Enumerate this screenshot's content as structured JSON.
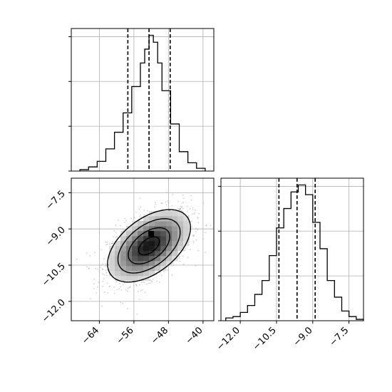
{
  "chart_data": {
    "type": "corner",
    "colors": {
      "line": "#000000",
      "grid": "#b0b0b0",
      "scatter": "#999999",
      "background": "#ffffff"
    },
    "grid": true,
    "params": [
      {
        "ticks": [
          -64,
          -56,
          -48,
          -40
        ],
        "tick_labels": [
          "−64",
          "−56",
          "−48",
          "−40"
        ],
        "range": [
          -70.5,
          -37.5
        ]
      },
      {
        "ticks": [
          -12.0,
          -10.5,
          -9.0,
          -7.5
        ],
        "tick_labels": [
          "−12.0",
          "−10.5",
          "−9.0",
          "−7.5"
        ],
        "range": [
          -12.8,
          -6.9
        ]
      }
    ],
    "panels": [
      {
        "kind": "histogram",
        "param": 0,
        "bin_edges": [
          -68.5,
          -66.5,
          -64.5,
          -62.5,
          -60.5,
          -58.5,
          -56.5,
          -54.5,
          -53.5,
          -52.5,
          -51.5,
          -50.5,
          -49.5,
          -47.5,
          -45.5,
          -43.5,
          -41.5,
          -39.5
        ],
        "counts": [
          0.01,
          0.03,
          0.07,
          0.16,
          0.28,
          0.42,
          0.61,
          0.78,
          0.88,
          0.98,
          0.93,
          0.78,
          0.58,
          0.34,
          0.14,
          0.06,
          0.02
        ],
        "quantiles": [
          -57.4,
          -52.5,
          -47.6
        ]
      },
      {
        "kind": "histogram",
        "param": 1,
        "bin_edges": [
          -12.6,
          -12.3,
          -12.0,
          -11.7,
          -11.4,
          -11.1,
          -10.8,
          -10.5,
          -10.2,
          -9.9,
          -9.6,
          -9.3,
          -9.0,
          -8.7,
          -8.4,
          -8.1,
          -7.8,
          -7.5,
          -7.2,
          -6.9
        ],
        "counts": [
          0.02,
          0.03,
          0.06,
          0.11,
          0.19,
          0.29,
          0.47,
          0.67,
          0.81,
          0.93,
          0.98,
          0.91,
          0.71,
          0.52,
          0.29,
          0.17,
          0.07,
          0.03,
          0.01
        ],
        "quantiles": [
          -10.4,
          -9.65,
          -8.9
        ]
      },
      {
        "kind": "2d-density",
        "x_param": 0,
        "y_param": 1,
        "center": [
          -52.5,
          -9.7
        ],
        "spread": [
          4.8,
          0.75
        ],
        "correlation": 0.5,
        "sample_count": 1500,
        "contour_levels_sigma": [
          0.5,
          1.0,
          1.5,
          2.0
        ],
        "peak": [
          -52,
          -9.2
        ]
      }
    ]
  }
}
